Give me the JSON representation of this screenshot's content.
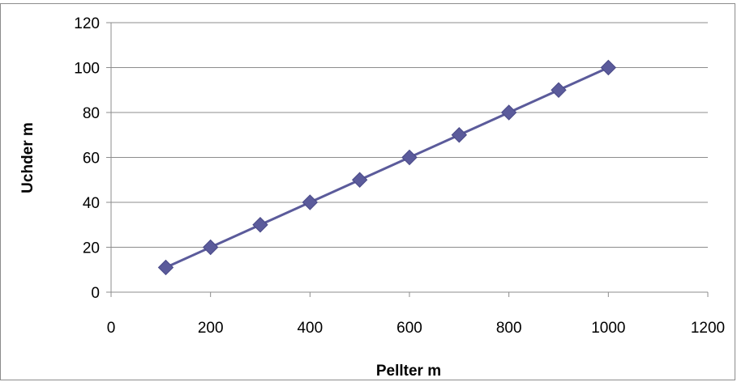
{
  "chart_data": {
    "type": "scatter",
    "xlabel": "Pellter m",
    "ylabel": "Uchder m",
    "xlim": [
      0,
      1200
    ],
    "ylim": [
      0,
      120
    ],
    "x_ticks": [
      0,
      200,
      400,
      600,
      800,
      1000,
      1200
    ],
    "y_ticks": [
      0,
      20,
      40,
      60,
      80,
      100,
      120
    ],
    "grid": "horizontal",
    "legend": "none",
    "marker": "diamond",
    "line": "straight",
    "series": [
      {
        "color": "#5b5b9b",
        "points": [
          {
            "x": 110,
            "y": 11
          },
          {
            "x": 200,
            "y": 20
          },
          {
            "x": 300,
            "y": 30
          },
          {
            "x": 400,
            "y": 40
          },
          {
            "x": 500,
            "y": 50
          },
          {
            "x": 600,
            "y": 60
          },
          {
            "x": 700,
            "y": 70
          },
          {
            "x": 800,
            "y": 80
          },
          {
            "x": 900,
            "y": 90
          },
          {
            "x": 1000,
            "y": 100
          }
        ]
      }
    ]
  }
}
